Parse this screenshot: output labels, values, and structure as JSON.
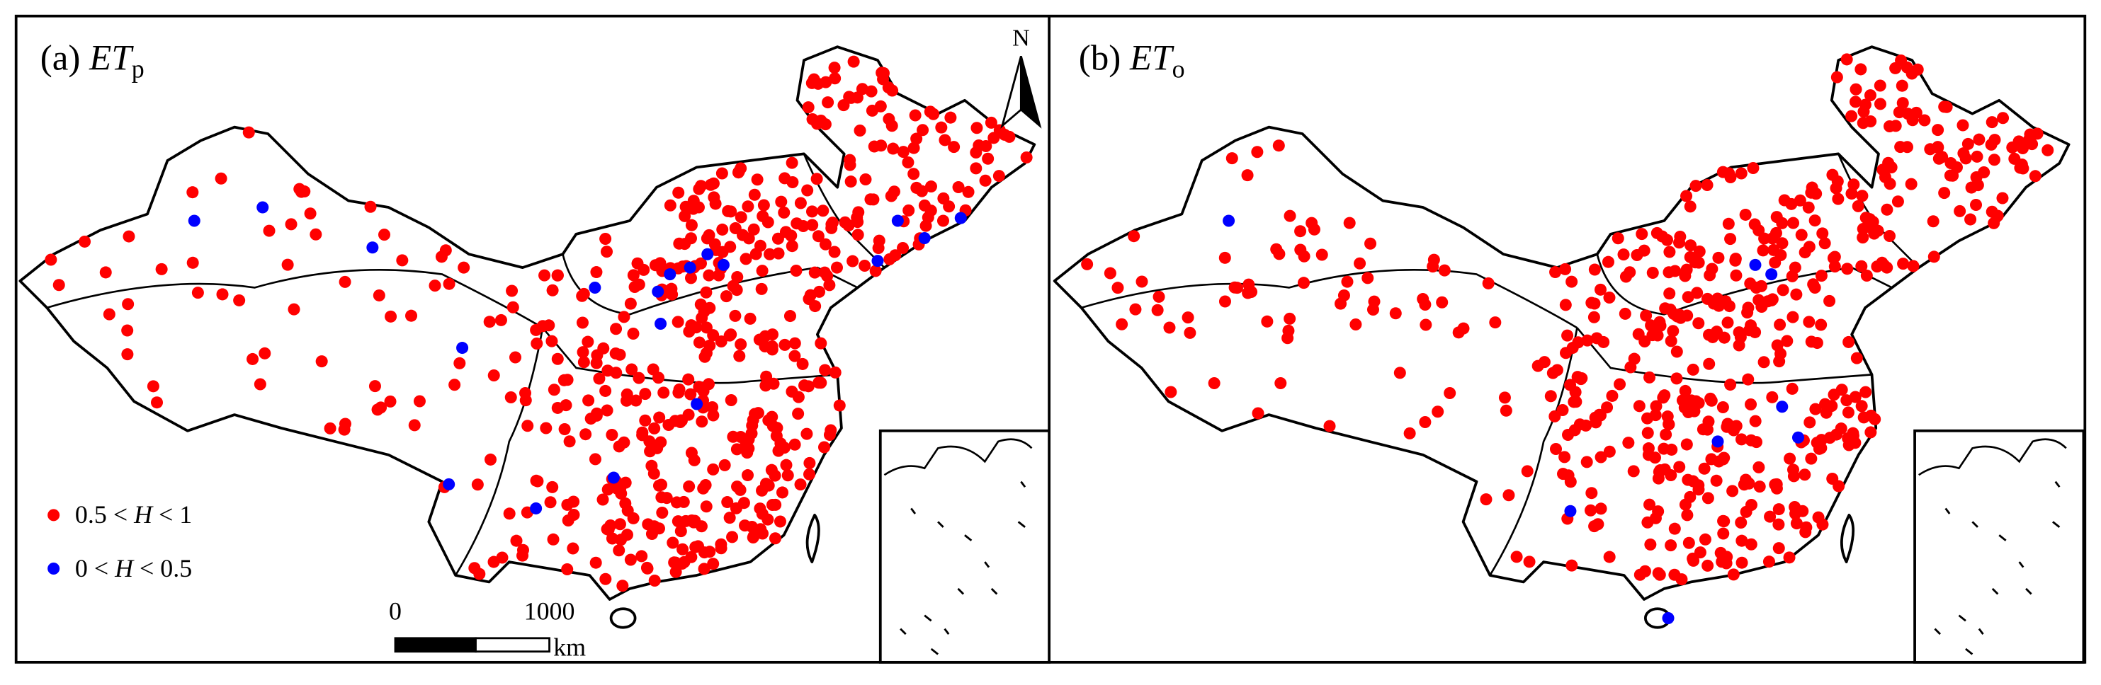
{
  "panels": [
    {
      "tag": "(a)",
      "variable": "ET",
      "subscript": "p"
    },
    {
      "tag": "(b)",
      "variable": "ET",
      "subscript": "o"
    }
  ],
  "legend": [
    {
      "prefix": "0.5 < ",
      "symbol": "H",
      "suffix": " < 1",
      "color": "#ff0000"
    },
    {
      "prefix": "0 < ",
      "symbol": "H",
      "suffix": " < 0.5",
      "color": "#0000ff"
    }
  ],
  "scale_bar": {
    "start": "0",
    "end": "1000",
    "unit": "km"
  },
  "north": "N"
}
